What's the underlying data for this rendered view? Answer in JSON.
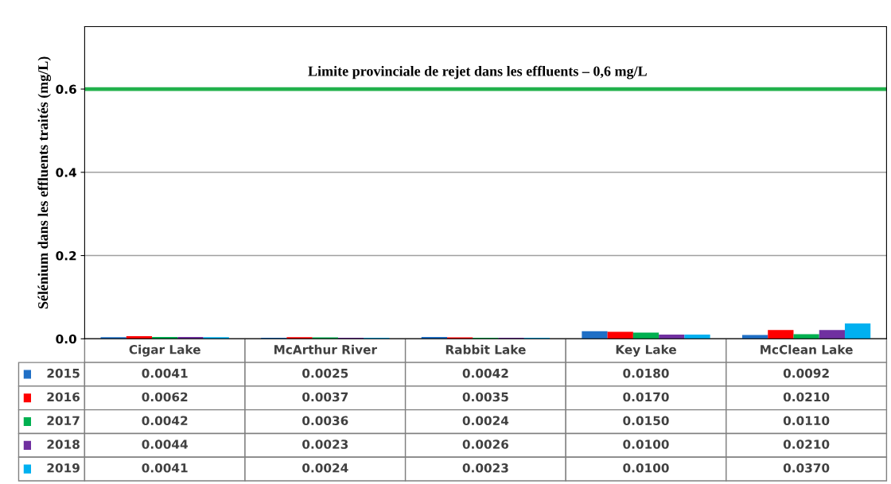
{
  "chart_data": {
    "type": "bar",
    "ylabel": "Sélénium dans les effluents traités (mg/L)",
    "categories": [
      "Cigar Lake",
      "McArthur River",
      "Rabbit Lake",
      "Key Lake",
      "McClean Lake"
    ],
    "series": [
      {
        "name": "2015",
        "color": "#1f6fc5",
        "values": [
          0.0041,
          0.0025,
          0.0042,
          0.018,
          0.0092
        ],
        "value_labels": [
          "0.0041",
          "0.0025",
          "0.0042",
          "0.0180",
          "0.0092"
        ]
      },
      {
        "name": "2016",
        "color": "#ff0000",
        "values": [
          0.0062,
          0.0037,
          0.0035,
          0.017,
          0.021
        ],
        "value_labels": [
          "0.0062",
          "0.0037",
          "0.0035",
          "0.0170",
          "0.0210"
        ]
      },
      {
        "name": "2017",
        "color": "#00b050",
        "values": [
          0.0042,
          0.0036,
          0.0024,
          0.015,
          0.011
        ],
        "value_labels": [
          "0.0042",
          "0.0036",
          "0.0024",
          "0.0150",
          "0.0110"
        ]
      },
      {
        "name": "2018",
        "color": "#7030a0",
        "values": [
          0.0044,
          0.0023,
          0.0026,
          0.01,
          0.021
        ],
        "value_labels": [
          "0.0044",
          "0.0023",
          "0.0026",
          "0.0100",
          "0.0210"
        ]
      },
      {
        "name": "2019",
        "color": "#00b0f0",
        "values": [
          0.0041,
          0.0024,
          0.0023,
          0.01,
          0.037
        ],
        "value_labels": [
          "0.0041",
          "0.0024",
          "0.0023",
          "0.0100",
          "0.0370"
        ]
      }
    ],
    "ylim": [
      0,
      0.75
    ],
    "yticks": [
      {
        "value": 0,
        "label": "0.0"
      },
      0.2,
      0.4,
      0.6
    ],
    "grid": "y",
    "legend": "bottom",
    "ref_lines": [
      {
        "axis": "y",
        "value": 0.6,
        "label": "Limite provinciale de rejet dans les effluents – 0,6 mg/L",
        "color": "#22b14c"
      }
    ]
  }
}
